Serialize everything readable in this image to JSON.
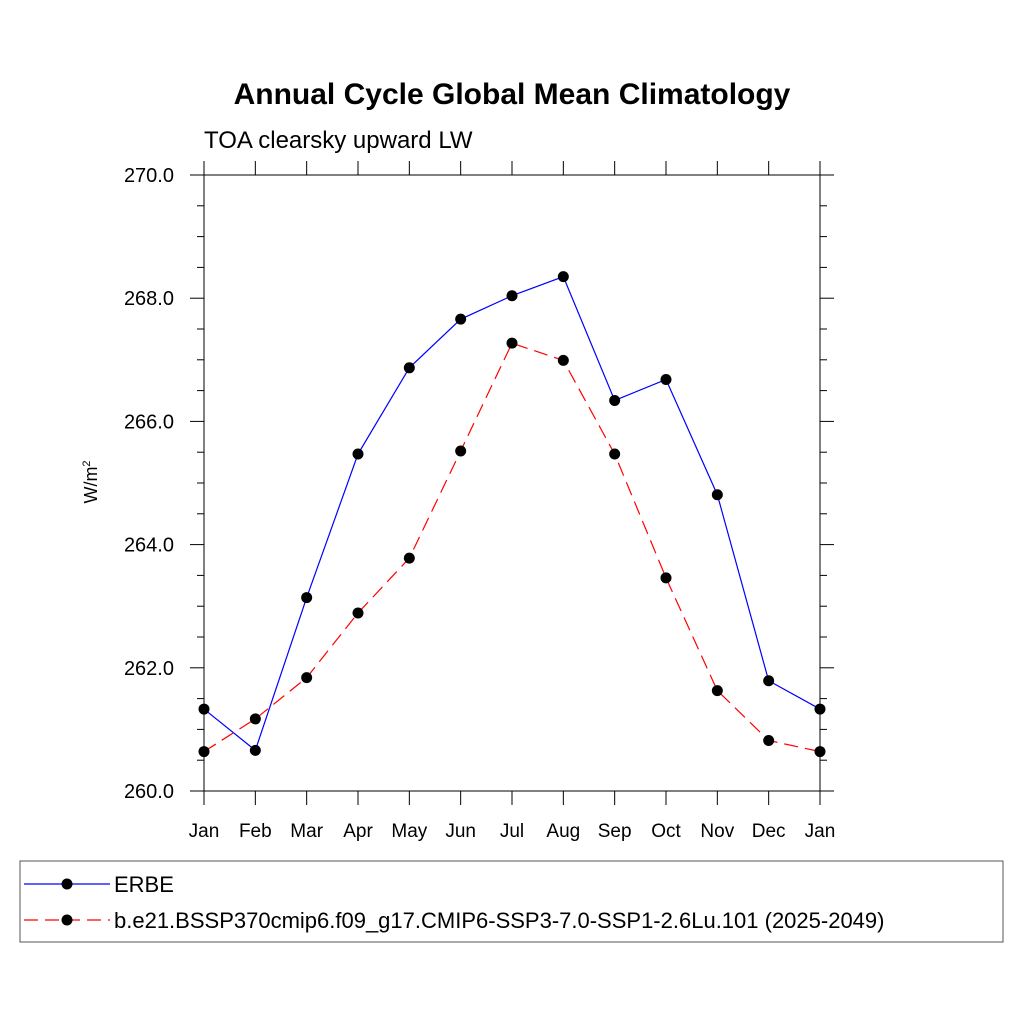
{
  "chart_data": {
    "type": "line",
    "title": "Annual Cycle Global Mean Climatology",
    "subtitle": "TOA clearsky upward LW",
    "xlabel": "",
    "ylabel": "W/m",
    "ylabel_superscript": "2",
    "categories": [
      "Jan",
      "Feb",
      "Mar",
      "Apr",
      "May",
      "Jun",
      "Jul",
      "Aug",
      "Sep",
      "Oct",
      "Nov",
      "Dec",
      "Jan"
    ],
    "ylim": [
      260.0,
      270.0
    ],
    "yticks": [
      "260.0",
      "262.0",
      "264.0",
      "266.0",
      "268.0",
      "270.0"
    ],
    "grid": false,
    "legend_position": "bottom",
    "series": [
      {
        "name": "ERBE",
        "color": "#0000ff",
        "line_style": "solid",
        "marker": "filled-circle",
        "values": [
          261.33,
          260.66,
          263.14,
          265.47,
          266.87,
          267.66,
          268.04,
          268.35,
          266.34,
          266.68,
          264.81,
          261.79,
          261.33
        ]
      },
      {
        "name": "b.e21.BSSP370cmip6.f09_g17.CMIP6-SSP3-7.0-SSP1-2.6Lu.101 (2025-2049)",
        "color": "#ff0000",
        "line_style": "dashed",
        "marker": "filled-circle",
        "values": [
          260.64,
          261.17,
          261.84,
          262.89,
          263.78,
          265.52,
          267.27,
          266.99,
          265.47,
          263.46,
          261.63,
          260.82,
          260.64
        ]
      }
    ]
  }
}
